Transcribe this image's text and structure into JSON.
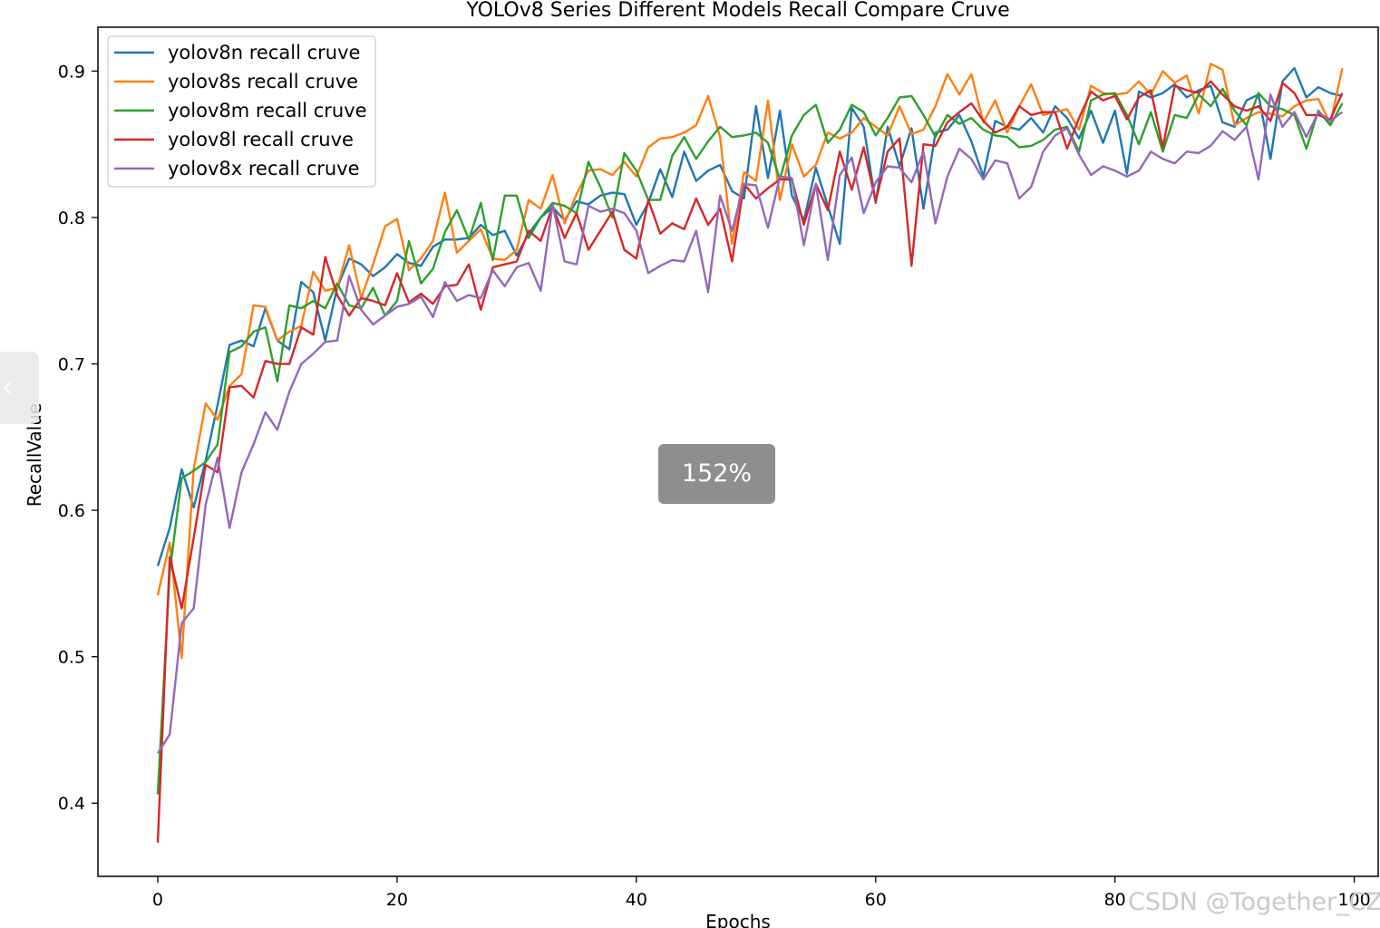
{
  "chart_data": {
    "type": "line",
    "title": "YOLOv8 Series Different Models Recall Compare Cruve",
    "xlabel": "Epochs",
    "ylabel": "RecallValue",
    "xlim": [
      -5,
      102
    ],
    "ylim": [
      0.35,
      0.93
    ],
    "xticks": [
      0,
      20,
      40,
      60,
      80,
      100
    ],
    "yticks": [
      0.4,
      0.5,
      0.6,
      0.7,
      0.8,
      0.9
    ],
    "grid": false,
    "legend_position": "upper-left",
    "x": [
      0,
      1,
      2,
      3,
      4,
      5,
      6,
      7,
      8,
      9,
      10,
      11,
      12,
      13,
      14,
      15,
      16,
      17,
      18,
      19,
      20,
      21,
      22,
      23,
      24,
      25,
      26,
      27,
      28,
      29,
      30,
      31,
      32,
      33,
      34,
      35,
      36,
      37,
      38,
      39,
      40,
      41,
      42,
      43,
      44,
      45,
      46,
      47,
      48,
      49,
      50,
      51,
      52,
      53,
      54,
      55,
      56,
      57,
      58,
      59,
      60,
      61,
      62,
      63,
      64,
      65,
      66,
      67,
      68,
      69,
      70,
      71,
      72,
      73,
      74,
      75,
      76,
      77,
      78,
      79,
      80,
      81,
      82,
      83,
      84,
      85,
      86,
      87,
      88,
      89,
      90,
      91,
      92,
      93,
      94,
      95,
      96,
      97,
      98,
      99
    ],
    "series": [
      {
        "name": "yolov8n recall cruve",
        "color": "#1f77b4",
        "values": [
          0.562,
          0.588,
          0.628,
          0.602,
          0.634,
          0.672,
          0.713,
          0.716,
          0.712,
          0.738,
          0.716,
          0.71,
          0.756,
          0.749,
          0.716,
          0.752,
          0.772,
          0.768,
          0.76,
          0.766,
          0.775,
          0.769,
          0.767,
          0.78,
          0.785,
          0.785,
          0.786,
          0.795,
          0.788,
          0.791,
          0.774,
          0.789,
          0.8,
          0.807,
          0.798,
          0.811,
          0.809,
          0.815,
          0.817,
          0.816,
          0.795,
          0.81,
          0.833,
          0.814,
          0.845,
          0.825,
          0.832,
          0.836,
          0.818,
          0.813,
          0.876,
          0.827,
          0.873,
          0.815,
          0.798,
          0.834,
          0.808,
          0.782,
          0.875,
          0.862,
          0.81,
          0.862,
          0.835,
          0.861,
          0.806,
          0.858,
          0.86,
          0.87,
          0.852,
          0.828,
          0.866,
          0.862,
          0.86,
          0.868,
          0.858,
          0.876,
          0.868,
          0.854,
          0.873,
          0.851,
          0.873,
          0.83,
          0.886,
          0.882,
          0.885,
          0.891,
          0.882,
          0.887,
          0.89,
          0.865,
          0.862,
          0.88,
          0.884,
          0.84,
          0.893,
          0.902,
          0.882,
          0.889,
          0.885,
          0.883
        ]
      },
      {
        "name": "yolov8s recall cruve",
        "color": "#ff7f0e",
        "values": [
          0.542,
          0.578,
          0.499,
          0.628,
          0.673,
          0.662,
          0.685,
          0.693,
          0.74,
          0.739,
          0.716,
          0.722,
          0.726,
          0.763,
          0.75,
          0.752,
          0.781,
          0.745,
          0.768,
          0.794,
          0.799,
          0.764,
          0.772,
          0.784,
          0.817,
          0.776,
          0.784,
          0.792,
          0.772,
          0.771,
          0.778,
          0.812,
          0.806,
          0.829,
          0.796,
          0.816,
          0.832,
          0.833,
          0.829,
          0.838,
          0.828,
          0.848,
          0.854,
          0.855,
          0.858,
          0.863,
          0.883,
          0.855,
          0.782,
          0.831,
          0.825,
          0.88,
          0.812,
          0.85,
          0.828,
          0.836,
          0.858,
          0.854,
          0.858,
          0.868,
          0.862,
          0.856,
          0.876,
          0.857,
          0.86,
          0.876,
          0.898,
          0.884,
          0.898,
          0.865,
          0.88,
          0.858,
          0.876,
          0.891,
          0.87,
          0.872,
          0.874,
          0.86,
          0.89,
          0.885,
          0.884,
          0.885,
          0.893,
          0.884,
          0.9,
          0.892,
          0.897,
          0.871,
          0.905,
          0.901,
          0.863,
          0.868,
          0.872,
          0.871,
          0.869,
          0.876,
          0.88,
          0.881,
          0.864,
          0.902
        ]
      },
      {
        "name": "yolov8m recall cruve",
        "color": "#2ca02c",
        "values": [
          0.406,
          0.558,
          0.622,
          0.627,
          0.633,
          0.645,
          0.708,
          0.712,
          0.722,
          0.725,
          0.688,
          0.74,
          0.738,
          0.743,
          0.738,
          0.755,
          0.74,
          0.738,
          0.752,
          0.733,
          0.743,
          0.784,
          0.755,
          0.765,
          0.79,
          0.805,
          0.785,
          0.81,
          0.771,
          0.815,
          0.815,
          0.786,
          0.8,
          0.81,
          0.808,
          0.803,
          0.838,
          0.821,
          0.8,
          0.844,
          0.832,
          0.812,
          0.812,
          0.842,
          0.855,
          0.84,
          0.852,
          0.862,
          0.855,
          0.856,
          0.858,
          0.851,
          0.826,
          0.856,
          0.87,
          0.877,
          0.851,
          0.86,
          0.877,
          0.872,
          0.856,
          0.868,
          0.882,
          0.883,
          0.87,
          0.855,
          0.87,
          0.864,
          0.868,
          0.86,
          0.856,
          0.855,
          0.848,
          0.849,
          0.853,
          0.86,
          0.862,
          0.845,
          0.88,
          0.884,
          0.885,
          0.87,
          0.85,
          0.872,
          0.845,
          0.87,
          0.868,
          0.884,
          0.876,
          0.888,
          0.873,
          0.863,
          0.885,
          0.876,
          0.874,
          0.87,
          0.847,
          0.873,
          0.863,
          0.878
        ]
      },
      {
        "name": "yolov8l recall cruve",
        "color": "#d62728",
        "values": [
          0.373,
          0.568,
          0.533,
          0.581,
          0.631,
          0.626,
          0.684,
          0.685,
          0.677,
          0.702,
          0.7,
          0.7,
          0.725,
          0.72,
          0.773,
          0.747,
          0.733,
          0.745,
          0.743,
          0.74,
          0.762,
          0.742,
          0.748,
          0.741,
          0.753,
          0.754,
          0.768,
          0.737,
          0.766,
          0.768,
          0.77,
          0.791,
          0.784,
          0.808,
          0.786,
          0.803,
          0.778,
          0.791,
          0.804,
          0.778,
          0.772,
          0.812,
          0.789,
          0.796,
          0.792,
          0.813,
          0.795,
          0.806,
          0.77,
          0.823,
          0.813,
          0.82,
          0.826,
          0.826,
          0.795,
          0.823,
          0.805,
          0.845,
          0.819,
          0.848,
          0.811,
          0.845,
          0.854,
          0.767,
          0.85,
          0.849,
          0.865,
          0.872,
          0.878,
          0.866,
          0.858,
          0.862,
          0.876,
          0.87,
          0.872,
          0.872,
          0.847,
          0.868,
          0.886,
          0.88,
          0.883,
          0.867,
          0.882,
          0.887,
          0.848,
          0.89,
          0.887,
          0.885,
          0.893,
          0.884,
          0.876,
          0.873,
          0.876,
          0.866,
          0.892,
          0.885,
          0.87,
          0.87,
          0.867,
          0.885
        ]
      },
      {
        "name": "yolov8x recall cruve",
        "color": "#9467bd",
        "values": [
          0.434,
          0.447,
          0.523,
          0.533,
          0.604,
          0.636,
          0.588,
          0.626,
          0.645,
          0.667,
          0.655,
          0.681,
          0.7,
          0.707,
          0.715,
          0.716,
          0.76,
          0.737,
          0.727,
          0.733,
          0.739,
          0.741,
          0.746,
          0.732,
          0.756,
          0.743,
          0.747,
          0.745,
          0.764,
          0.753,
          0.766,
          0.769,
          0.75,
          0.809,
          0.77,
          0.768,
          0.808,
          0.804,
          0.806,
          0.803,
          0.791,
          0.762,
          0.767,
          0.771,
          0.77,
          0.791,
          0.749,
          0.815,
          0.791,
          0.823,
          0.822,
          0.793,
          0.828,
          0.827,
          0.781,
          0.823,
          0.771,
          0.829,
          0.841,
          0.803,
          0.824,
          0.835,
          0.834,
          0.824,
          0.845,
          0.796,
          0.828,
          0.847,
          0.84,
          0.826,
          0.839,
          0.837,
          0.813,
          0.821,
          0.845,
          0.856,
          0.861,
          0.843,
          0.829,
          0.835,
          0.832,
          0.828,
          0.832,
          0.845,
          0.84,
          0.837,
          0.845,
          0.844,
          0.849,
          0.859,
          0.853,
          0.862,
          0.826,
          0.884,
          0.862,
          0.872,
          0.855,
          0.872,
          0.866,
          0.872
        ]
      }
    ]
  },
  "overlay": {
    "zoom_level": "152%",
    "watermark": "CSDN @Together_CZ",
    "prev_icon": "chevron-left-icon"
  }
}
